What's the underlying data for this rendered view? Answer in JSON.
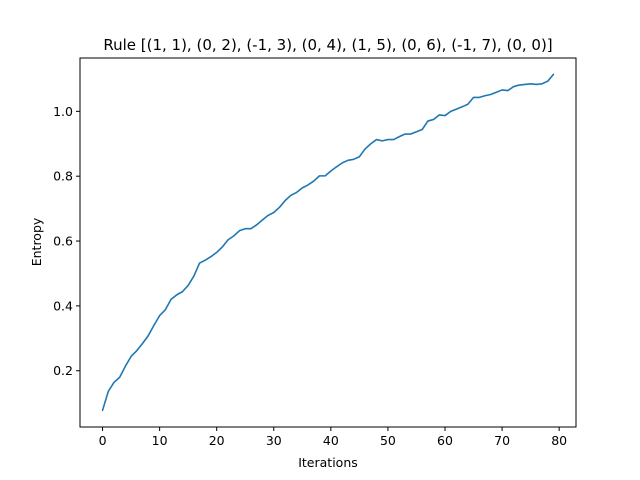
{
  "chart_data": {
    "type": "line",
    "title": "Rule [(1, 1), (0, 2), (-1, 3), (0, 4), (1, 5), (0, 6), (-1, 7), (0, 0)]",
    "xlabel": "Iterations",
    "ylabel": "Entropy",
    "xlim": [
      -3.95,
      82.95
    ],
    "ylim": [
      0.0265,
      1.1645
    ],
    "xticks": [
      0,
      10,
      20,
      30,
      40,
      50,
      60,
      70,
      80
    ],
    "yticks": [
      0.2,
      0.4,
      0.6,
      0.8,
      1.0
    ],
    "ytick_labels": [
      "0.2",
      "0.4",
      "0.6",
      "0.8",
      "1.0"
    ],
    "grid": false,
    "series": [
      {
        "name": "entropy",
        "color": "#1f77b4",
        "x": [
          0,
          1,
          2,
          3,
          4,
          5,
          6,
          7,
          8,
          9,
          10,
          11,
          12,
          13,
          14,
          15,
          16,
          17,
          18,
          19,
          20,
          21,
          22,
          23,
          24,
          25,
          26,
          27,
          28,
          29,
          30,
          31,
          32,
          33,
          34,
          35,
          36,
          37,
          38,
          39,
          40,
          41,
          42,
          43,
          44,
          45,
          46,
          47,
          48,
          49,
          50,
          51,
          52,
          53,
          54,
          55,
          56,
          57,
          58,
          59,
          60,
          61,
          62,
          63,
          64,
          65,
          66,
          67,
          68,
          69,
          70,
          71,
          72,
          73,
          74,
          75,
          76,
          77,
          78,
          79
        ],
        "values": [
          0.078,
          0.136,
          0.164,
          0.18,
          0.214,
          0.244,
          0.262,
          0.284,
          0.308,
          0.34,
          0.37,
          0.388,
          0.42,
          0.434,
          0.444,
          0.463,
          0.492,
          0.532,
          0.541,
          0.552,
          0.565,
          0.582,
          0.604,
          0.616,
          0.632,
          0.638,
          0.638,
          0.65,
          0.665,
          0.679,
          0.688,
          0.704,
          0.725,
          0.741,
          0.75,
          0.764,
          0.773,
          0.785,
          0.801,
          0.801,
          0.816,
          0.829,
          0.841,
          0.849,
          0.852,
          0.86,
          0.884,
          0.9,
          0.913,
          0.909,
          0.913,
          0.913,
          0.922,
          0.93,
          0.93,
          0.937,
          0.944,
          0.97,
          0.975,
          0.989,
          0.987,
          1.0,
          1.007,
          1.014,
          1.022,
          1.043,
          1.043,
          1.048,
          1.052,
          1.059,
          1.066,
          1.064,
          1.076,
          1.081,
          1.083,
          1.085,
          1.083,
          1.085,
          1.093,
          1.114
        ]
      }
    ]
  }
}
